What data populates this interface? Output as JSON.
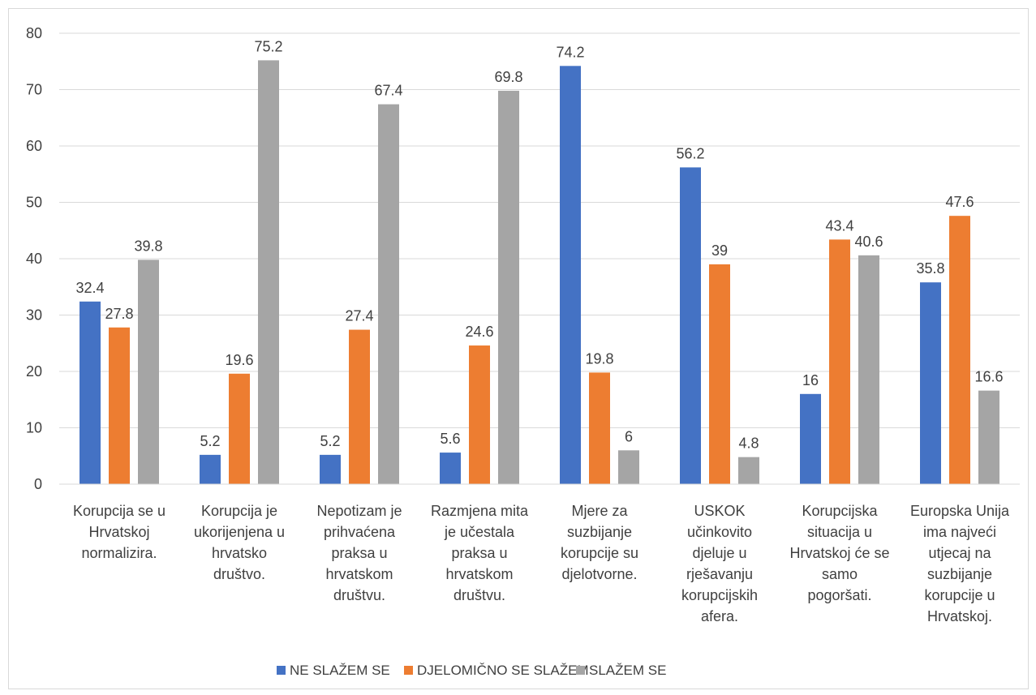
{
  "chart_data": {
    "type": "bar",
    "categories": [
      [
        "Korupcija se u",
        "Hrvatskoj",
        "normalizira."
      ],
      [
        "Korupcija je",
        "ukorijenjena u",
        "hrvatsko",
        "društvo."
      ],
      [
        "Nepotizam je",
        "prihvaćena",
        "praksa u",
        "hrvatskom",
        "društvu."
      ],
      [
        "Razmjena mita",
        "je učestala",
        "praksa u",
        "hrvatskom",
        "društvu."
      ],
      [
        "Mjere za",
        "suzbijanje",
        "korupcije su",
        "djelotvorne."
      ],
      [
        "USKOK",
        "učinkovito",
        "djeluje u",
        "rješavanju",
        "korupcijskih",
        "afera."
      ],
      [
        "Korupcijska",
        "situacija u",
        "Hrvatskoj će se",
        "samo",
        "pogoršati."
      ],
      [
        "Europska Unija",
        "ima najveći",
        "utjecaj na",
        "suzbijanje",
        "korupcije u",
        "Hrvatskoj."
      ]
    ],
    "series": [
      {
        "name": "NE SLAŽEM SE",
        "color": "#4472c4",
        "values": [
          32.4,
          5.2,
          5.2,
          5.6,
          74.2,
          56.2,
          16,
          35.8
        ],
        "labels": [
          "32.4",
          "5.2",
          "5.2",
          "5.6",
          "74.2",
          "56.2",
          "16",
          "35.8"
        ]
      },
      {
        "name": "DJELOMIČNO SE SLAŽEM",
        "color": "#ed7d31",
        "values": [
          27.8,
          19.6,
          27.4,
          24.6,
          19.8,
          39,
          43.4,
          47.6
        ],
        "labels": [
          "27.8",
          "19.6",
          "27.4",
          "24.6",
          "19.8",
          "39",
          "43.4",
          "47.6"
        ]
      },
      {
        "name": "SLAŽEM SE",
        "color": "#a5a5a5",
        "values": [
          39.8,
          75.2,
          67.4,
          69.8,
          6,
          4.8,
          40.6,
          16.6
        ],
        "labels": [
          "39.8",
          "75.2",
          "67.4",
          "69.8",
          "6",
          "4.8",
          "40.6",
          "16.6"
        ]
      }
    ],
    "y_ticks": [
      "0",
      "10",
      "20",
      "30",
      "40",
      "50",
      "60",
      "70",
      "80"
    ],
    "ylim": [
      0,
      80
    ],
    "grid": true,
    "gridline_color": "#d9d9d9",
    "legend_position": "bottom"
  }
}
